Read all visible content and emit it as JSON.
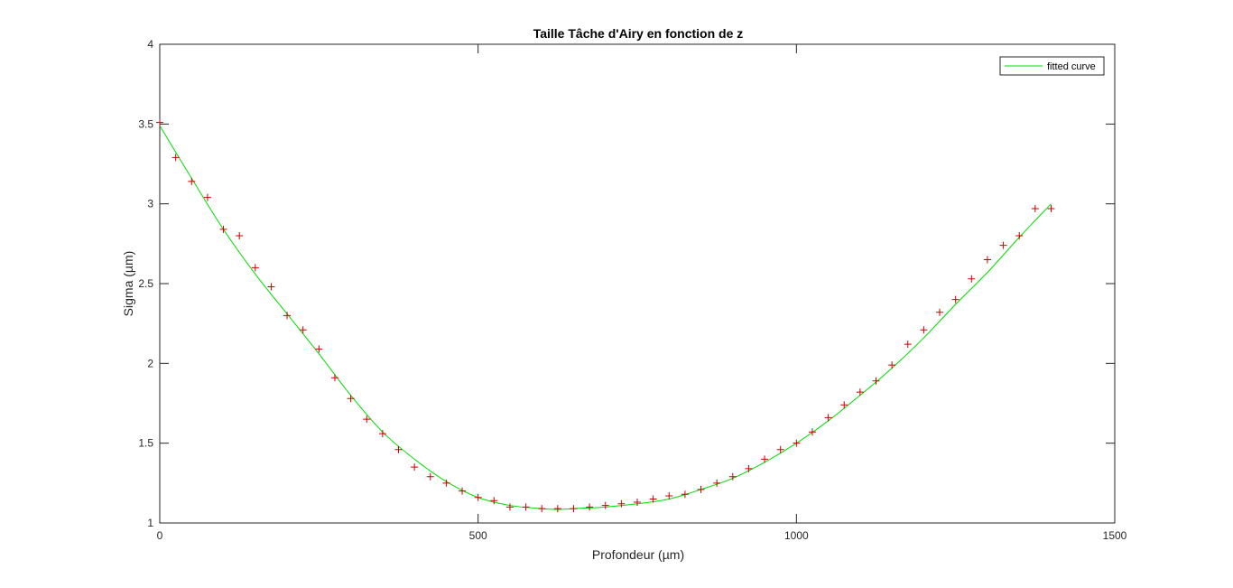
{
  "chart_data": {
    "type": "scatter",
    "title": "Taille Tâche d'Airy en fonction de z",
    "xlabel": "Profondeur (µm)",
    "ylabel": "Sigma (µm)",
    "xlim": [
      0,
      1500
    ],
    "ylim": [
      1,
      4
    ],
    "xticks": [
      0,
      500,
      1000,
      1500
    ],
    "xtick_labels": [
      "0",
      "500",
      "1000",
      "1500"
    ],
    "yticks": [
      1,
      1.5,
      2,
      2.5,
      3,
      3.5,
      4
    ],
    "ytick_labels": [
      "1",
      "1.5",
      "2",
      "2.5",
      "3",
      "3.5",
      "4"
    ],
    "grid": false,
    "legend": {
      "placement": "top-right",
      "entries": [
        "fitted curve"
      ]
    },
    "colors": {
      "markers": "#cc0000",
      "curve": "#00dd00",
      "axes": "#262626"
    },
    "series": [
      {
        "kind": "data",
        "marker": "+",
        "x": [
          0,
          25,
          50,
          75,
          100,
          125,
          150,
          175,
          200,
          225,
          250,
          275,
          300,
          325,
          350,
          375,
          400,
          425,
          450,
          475,
          500,
          525,
          550,
          575,
          600,
          625,
          650,
          675,
          700,
          725,
          750,
          775,
          800,
          825,
          850,
          875,
          900,
          925,
          950,
          975,
          1000,
          1025,
          1050,
          1075,
          1100,
          1125,
          1150,
          1175,
          1200,
          1225,
          1250,
          1275,
          1300,
          1325,
          1350,
          1375,
          1400
        ],
        "y": [
          3.51,
          3.29,
          3.14,
          3.04,
          2.84,
          2.8,
          2.6,
          2.48,
          2.3,
          2.21,
          2.09,
          1.91,
          1.78,
          1.65,
          1.56,
          1.46,
          1.35,
          1.29,
          1.25,
          1.2,
          1.16,
          1.14,
          1.1,
          1.1,
          1.09,
          1.09,
          1.09,
          1.1,
          1.11,
          1.12,
          1.13,
          1.15,
          1.17,
          1.18,
          1.21,
          1.25,
          1.29,
          1.34,
          1.4,
          1.46,
          1.5,
          1.57,
          1.66,
          1.74,
          1.82,
          1.89,
          1.99,
          2.12,
          2.21,
          2.32,
          2.4,
          2.53,
          2.65,
          2.74,
          2.8,
          2.97,
          2.97
        ]
      },
      {
        "name": "fitted curve",
        "kind": "fit",
        "x": [
          0,
          50,
          100,
          150,
          200,
          250,
          300,
          350,
          400,
          450,
          500,
          550,
          600,
          625,
          650,
          700,
          750,
          800,
          850,
          900,
          950,
          1000,
          1050,
          1100,
          1150,
          1200,
          1250,
          1300,
          1350,
          1400
        ],
        "y": [
          3.49,
          3.16,
          2.84,
          2.56,
          2.31,
          2.06,
          1.8,
          1.57,
          1.4,
          1.26,
          1.16,
          1.11,
          1.09,
          1.085,
          1.09,
          1.1,
          1.12,
          1.15,
          1.21,
          1.28,
          1.38,
          1.5,
          1.64,
          1.8,
          1.97,
          2.16,
          2.37,
          2.57,
          2.79,
          3.0
        ]
      }
    ]
  }
}
